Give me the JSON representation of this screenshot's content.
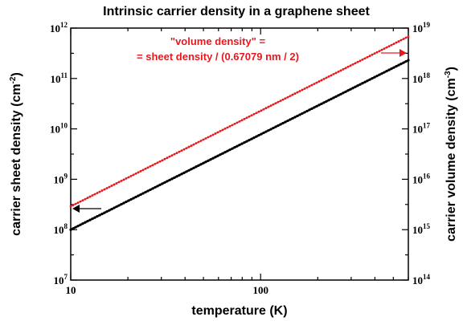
{
  "chart_data": {
    "type": "line",
    "title": "Intrinsic carrier density in a graphene sheet",
    "xlabel": "temperature (K)",
    "ylabel_left": {
      "text": "carrier sheet density (cm",
      "sup": "-2",
      "close": ")"
    },
    "ylabel_right": {
      "text": "carrier volume density (cm",
      "sup": "-3",
      "close": ")"
    },
    "x_scale": "log",
    "y_scale": "log",
    "xlim": [
      10,
      600
    ],
    "ylim_left": [
      10000000.0,
      1000000000000.0
    ],
    "ylim_right": [
      100000000000000.0,
      1e+19
    ],
    "x_ticks": [
      {
        "value": 10,
        "label": "10"
      },
      {
        "value": 100,
        "label": "100"
      }
    ],
    "y_ticks_left": [
      {
        "value": 10000000.0,
        "base": "10",
        "exp": "7"
      },
      {
        "value": 100000000.0,
        "base": "10",
        "exp": "8"
      },
      {
        "value": 1000000000.0,
        "base": "10",
        "exp": "9"
      },
      {
        "value": 10000000000.0,
        "base": "10",
        "exp": "10"
      },
      {
        "value": 100000000000.0,
        "base": "10",
        "exp": "11"
      },
      {
        "value": 1000000000000.0,
        "base": "10",
        "exp": "12"
      }
    ],
    "y_ticks_right": [
      {
        "value": 100000000000000.0,
        "base": "10",
        "exp": "14"
      },
      {
        "value": 1000000000000000.0,
        "base": "10",
        "exp": "15"
      },
      {
        "value": 1e+16,
        "base": "10",
        "exp": "16"
      },
      {
        "value": 1e+17,
        "base": "10",
        "exp": "17"
      },
      {
        "value": 1e+18,
        "base": "10",
        "exp": "18"
      },
      {
        "value": 1e+19,
        "base": "10",
        "exp": "19"
      }
    ],
    "grid": false,
    "series": [
      {
        "axis": "left",
        "color": "#000000",
        "x": [
          10,
          600
        ],
        "y": [
          100000000.0,
          230000000000.0
        ]
      },
      {
        "axis": "right",
        "color": "#e8191d",
        "x": [
          10,
          600
        ],
        "y": [
          2900000000000000.0,
          6.8e+18
        ]
      }
    ],
    "annotation": {
      "lines": [
        "\"volume density\" =",
        "= sheet density / (0.67079 nm / 2)"
      ],
      "color": "#e8191d"
    }
  }
}
